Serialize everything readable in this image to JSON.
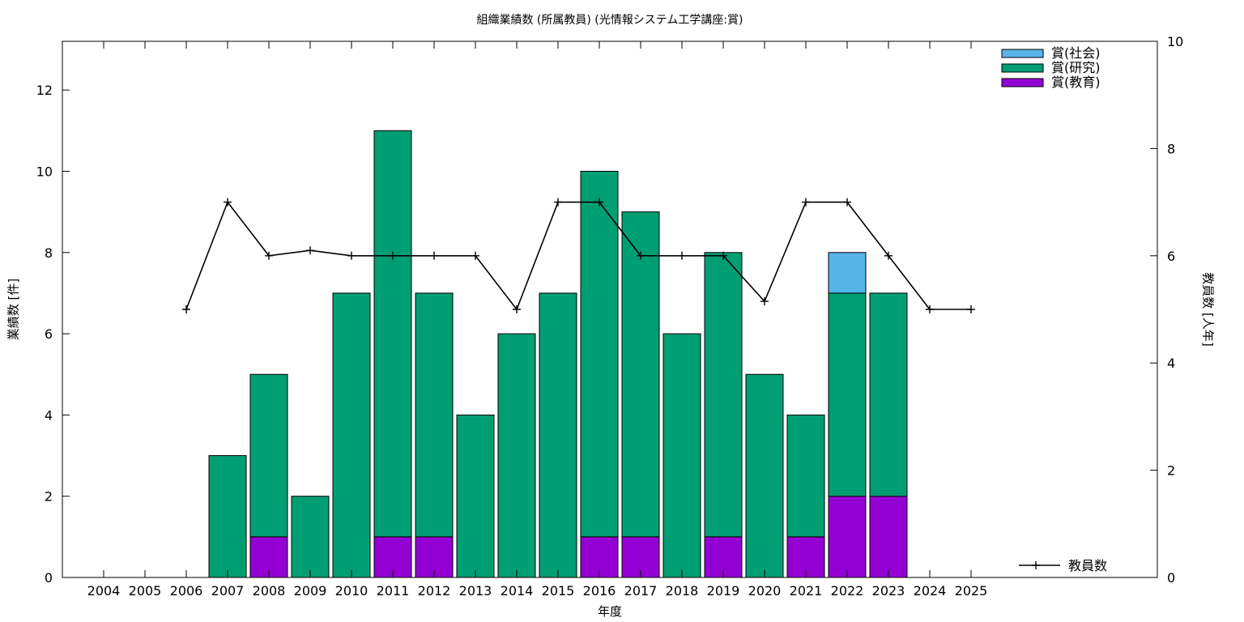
{
  "chart_data": {
    "type": "bar",
    "title": "組織業績数 (所属教員) (光情報システム工学講座:賞)",
    "xlabel": "年度",
    "ylabel": "業績数 [件]",
    "y2label": "教員数 [人年]",
    "categories": [
      "2004",
      "2005",
      "2006",
      "2007",
      "2008",
      "2009",
      "2010",
      "2011",
      "2012",
      "2013",
      "2014",
      "2015",
      "2016",
      "2017",
      "2018",
      "2019",
      "2020",
      "2021",
      "2022",
      "2023",
      "2024",
      "2025"
    ],
    "stacked": true,
    "ylim": [
      0,
      13.2
    ],
    "yticks": [
      0,
      2,
      4,
      6,
      8,
      10,
      12
    ],
    "y2lim": [
      0,
      10
    ],
    "y2ticks": [
      0,
      2,
      4,
      6,
      8,
      10
    ],
    "series": [
      {
        "name": "賞(教育)",
        "color": "#9400d3",
        "values": [
          0,
          0,
          0,
          0,
          1,
          0,
          0,
          1,
          1,
          0,
          0,
          0,
          1,
          1,
          0,
          1,
          0,
          1,
          2,
          2,
          0,
          0
        ]
      },
      {
        "name": "賞(研究)",
        "color": "#009e73",
        "values": [
          0,
          0,
          0,
          3,
          4,
          2,
          7,
          10,
          6,
          4,
          6,
          7,
          9,
          8,
          6,
          7,
          5,
          3,
          5,
          5,
          0,
          0
        ]
      },
      {
        "name": "賞(社会)",
        "color": "#56b4e9",
        "values": [
          0,
          0,
          0,
          0,
          0,
          0,
          0,
          0,
          0,
          0,
          0,
          0,
          0,
          0,
          0,
          0,
          0,
          0,
          1,
          0,
          0,
          0
        ]
      }
    ],
    "line_series": {
      "name": "教員数",
      "axis": "y2",
      "color": "#000000",
      "x": [
        "2006",
        "2007",
        "2008",
        "2009",
        "2010",
        "2011",
        "2012",
        "2013",
        "2014",
        "2015",
        "2016",
        "2017",
        "2018",
        "2019",
        "2020",
        "2021",
        "2022",
        "2023",
        "2024",
        "2025"
      ],
      "values": [
        5,
        7,
        6,
        6.1,
        6,
        6,
        6,
        6,
        5,
        7,
        7,
        6,
        6,
        6,
        5.15,
        7,
        7,
        6,
        5,
        5
      ]
    },
    "legend_position": "top-right",
    "grid": false
  }
}
